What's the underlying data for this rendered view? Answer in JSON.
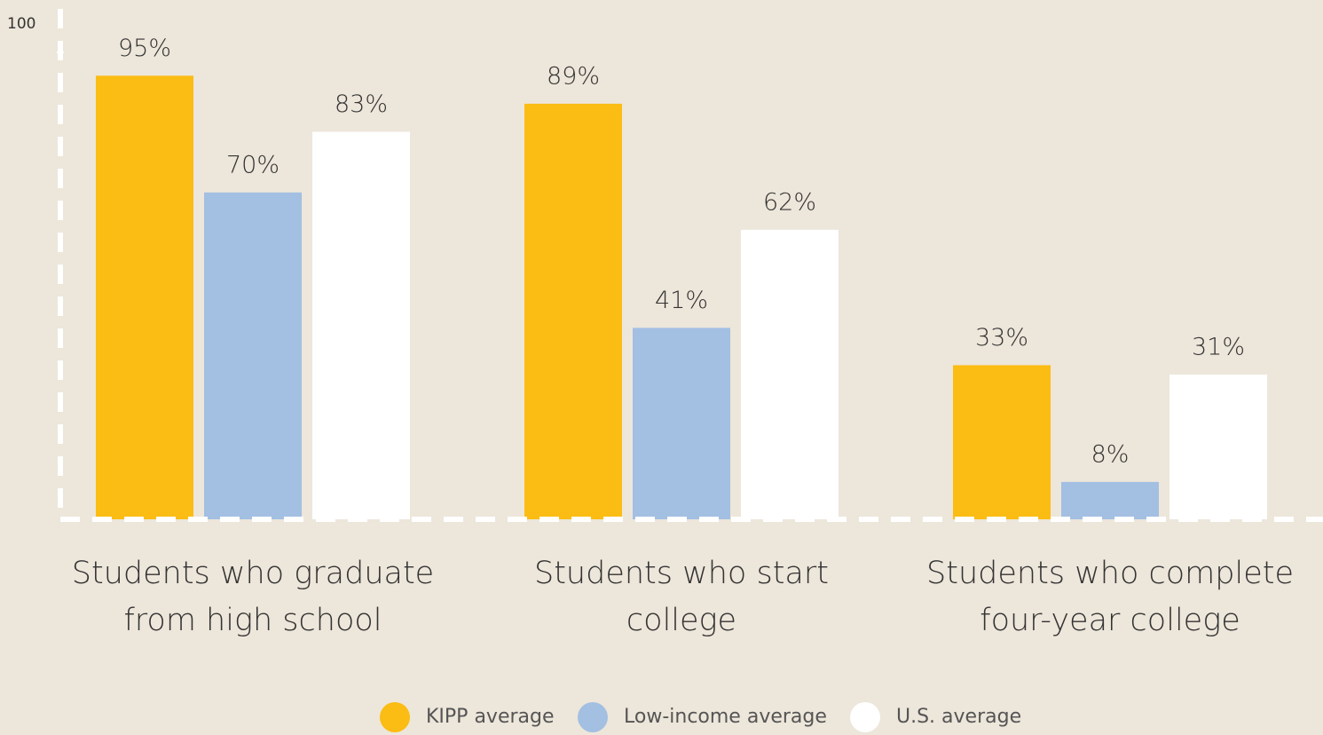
{
  "chart_data": {
    "type": "bar",
    "categories": [
      "Students who graduate from high school",
      "Students who start college",
      "Students who complete four-year college"
    ],
    "series": [
      {
        "name": "KIPP average",
        "color": "#fbbc13",
        "values": [
          95,
          89,
          33
        ],
        "value_labels": [
          "95%",
          "89%",
          "33%"
        ]
      },
      {
        "name": "Low-income average",
        "color": "#a3bfe2",
        "values": [
          70,
          41,
          8
        ],
        "value_labels": [
          "70%",
          "41%",
          "8%"
        ]
      },
      {
        "name": "U.S. average",
        "color": "#ffffff",
        "values": [
          83,
          62,
          31
        ],
        "value_labels": [
          "83%",
          "62%",
          "31%"
        ]
      }
    ],
    "ylim": [
      0,
      100
    ],
    "yticks": [
      100
    ],
    "legend": "bottom"
  }
}
